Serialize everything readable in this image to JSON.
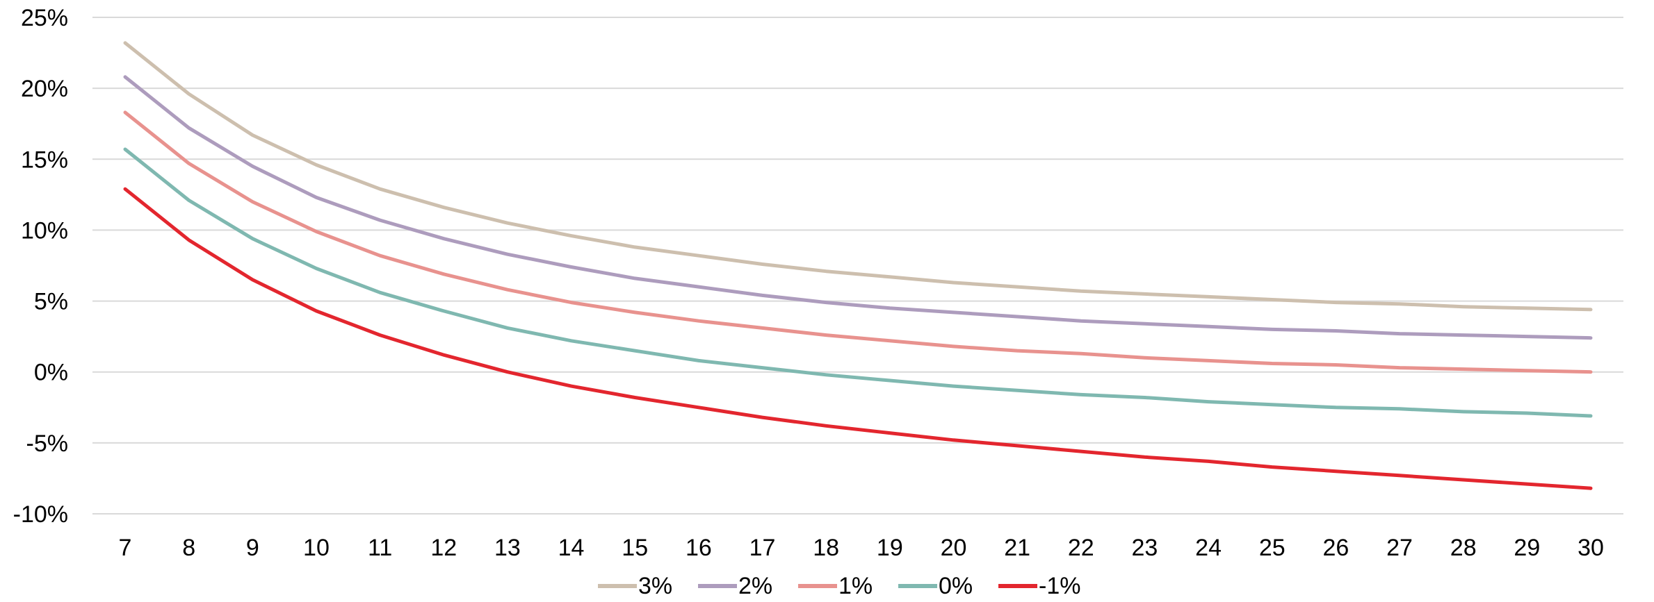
{
  "chart_data": {
    "type": "line",
    "title": "",
    "xlabel": "",
    "ylabel": "",
    "x": [
      7,
      8,
      9,
      10,
      11,
      12,
      13,
      14,
      15,
      16,
      17,
      18,
      19,
      20,
      21,
      22,
      23,
      24,
      25,
      26,
      27,
      28,
      29,
      30
    ],
    "x_tick_labels": [
      "7",
      "8",
      "9",
      "10",
      "11",
      "12",
      "13",
      "14",
      "15",
      "16",
      "17",
      "18",
      "19",
      "20",
      "21",
      "22",
      "23",
      "24",
      "25",
      "26",
      "27",
      "28",
      "29",
      "30"
    ],
    "ylim": [
      -10,
      25
    ],
    "y_ticks": [
      25,
      20,
      15,
      10,
      5,
      0,
      -5,
      -10
    ],
    "y_tick_labels": [
      "25%",
      "20%",
      "15%",
      "10%",
      "5%",
      "0%",
      "-5%",
      "-10%"
    ],
    "grid": "horizontal",
    "legend_position": "bottom-center",
    "series": [
      {
        "name": "3%",
        "color": "#cdbfae",
        "values": [
          23.2,
          19.6,
          16.7,
          14.6,
          12.9,
          11.6,
          10.5,
          9.6,
          8.8,
          8.2,
          7.6,
          7.1,
          6.7,
          6.3,
          6.0,
          5.7,
          5.5,
          5.3,
          5.1,
          4.9,
          4.8,
          4.6,
          4.5,
          4.4
        ]
      },
      {
        "name": "2%",
        "color": "#ad9cbd",
        "values": [
          20.8,
          17.2,
          14.5,
          12.3,
          10.7,
          9.4,
          8.3,
          7.4,
          6.6,
          6.0,
          5.4,
          4.9,
          4.5,
          4.2,
          3.9,
          3.6,
          3.4,
          3.2,
          3.0,
          2.9,
          2.7,
          2.6,
          2.5,
          2.4
        ]
      },
      {
        "name": "1%",
        "color": "#e8928e",
        "values": [
          18.3,
          14.7,
          12.0,
          9.9,
          8.2,
          6.9,
          5.8,
          4.9,
          4.2,
          3.6,
          3.1,
          2.6,
          2.2,
          1.8,
          1.5,
          1.3,
          1.0,
          0.8,
          0.6,
          0.5,
          0.3,
          0.2,
          0.1,
          0.0
        ]
      },
      {
        "name": "0%",
        "color": "#7fb8b0",
        "values": [
          15.7,
          12.1,
          9.4,
          7.3,
          5.6,
          4.3,
          3.1,
          2.2,
          1.5,
          0.8,
          0.3,
          -0.2,
          -0.6,
          -1.0,
          -1.3,
          -1.6,
          -1.8,
          -2.1,
          -2.3,
          -2.5,
          -2.6,
          -2.8,
          -2.9,
          -3.1
        ]
      },
      {
        "name": "-1%",
        "color": "#e3262e",
        "values": [
          12.9,
          9.3,
          6.5,
          4.3,
          2.6,
          1.2,
          0.0,
          -1.0,
          -1.8,
          -2.5,
          -3.2,
          -3.8,
          -4.3,
          -4.8,
          -5.2,
          -5.6,
          -6.0,
          -6.3,
          -6.7,
          -7.0,
          -7.3,
          -7.6,
          -7.9,
          -8.2
        ]
      }
    ]
  }
}
